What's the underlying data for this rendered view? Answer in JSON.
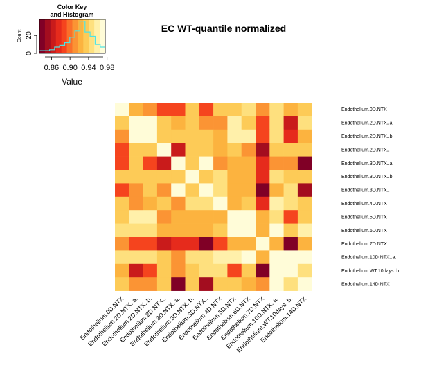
{
  "chart_data": {
    "type": "heatmap",
    "title": "EC WT-quantile normalized",
    "color_key": {
      "title_line1": "Color Key",
      "title_line2": "and Histogram",
      "xlabel": "Value",
      "ylabel": "Count",
      "xticks": [
        "0.86",
        "0.90",
        "0.94",
        "0.98"
      ],
      "xtick_values": [
        0.86,
        0.9,
        0.94,
        0.98
      ],
      "xlim": [
        0.834,
        0.976
      ],
      "yticks": [
        "0",
        "20"
      ],
      "ytick_values": [
        0,
        20
      ],
      "ylim": [
        0,
        38
      ],
      "colors": [
        "#800026",
        "#A30D1F",
        "#C91B1B",
        "#E62B1C",
        "#F5441E",
        "#FA6F2A",
        "#FB9434",
        "#FCB33F",
        "#FDCB57",
        "#FEE07E",
        "#FFF0AA",
        "#FFFCD8"
      ],
      "histogram_values": [
        3,
        3,
        4,
        7,
        9,
        12,
        18,
        25,
        36,
        24,
        19,
        10,
        7
      ]
    },
    "columns": [
      "Endothelium.0D.NTX",
      "Endothelium.2D.NTX..a.",
      "Endothelium.2D.NTX..b.",
      "Endothelium.2D.NTX..",
      "Endothelium.3D.NTX..a.",
      "Endothelium.3D.NTX..b.",
      "Endothelium.3D.NTX..",
      "Endothelium.4D.NTX",
      "Endothelium.5D.NTX",
      "Endothelium.6D.NTX",
      "Endothelium.7D.NTX",
      "Endothelium.10D.NTX..a.",
      "Endothelium.WT.10days..b.",
      "Endothelium.14D.NTX"
    ],
    "rows": [
      "Endothelium.0D.NTX",
      "Endothelium.2D.NTX..a.",
      "Endothelium.2D.NTX..b.",
      "Endothelium.2D.NTX..",
      "Endothelium.3D.NTX..a.",
      "Endothelium.3D.NTX..b.",
      "Endothelium.3D.NTX..",
      "Endothelium.4D.NTX",
      "Endothelium.5D.NTX",
      "Endothelium.6D.NTX",
      "Endothelium.7D.NTX",
      "Endothelium.10D.NTX..a.",
      "Endothelium.WT.10days..b.",
      "Endothelium.14D.NTX"
    ],
    "values": [
      [
        0.98,
        0.92,
        0.91,
        0.89,
        0.89,
        0.93,
        0.89,
        0.93,
        0.93,
        0.95,
        0.91,
        0.95,
        0.92,
        0.93
      ],
      [
        0.93,
        0.98,
        0.98,
        0.93,
        0.92,
        0.93,
        0.91,
        0.91,
        0.96,
        0.93,
        0.89,
        0.95,
        0.86,
        0.95
      ],
      [
        0.91,
        0.98,
        0.98,
        0.93,
        0.93,
        0.93,
        0.93,
        0.92,
        0.96,
        0.96,
        0.89,
        0.95,
        0.88,
        0.92
      ],
      [
        0.89,
        0.94,
        0.94,
        0.98,
        0.86,
        0.93,
        0.93,
        0.92,
        0.93,
        0.91,
        0.85,
        0.94,
        0.94,
        0.94
      ],
      [
        0.89,
        0.93,
        0.89,
        0.86,
        0.98,
        0.93,
        0.98,
        0.91,
        0.92,
        0.92,
        0.87,
        0.91,
        0.91,
        0.84
      ],
      [
        0.93,
        0.93,
        0.93,
        0.93,
        0.93,
        0.98,
        0.93,
        0.95,
        0.92,
        0.92,
        0.87,
        0.95,
        0.94,
        0.93
      ],
      [
        0.89,
        0.91,
        0.93,
        0.91,
        0.98,
        0.93,
        0.98,
        0.95,
        0.92,
        0.92,
        0.83,
        0.92,
        0.95,
        0.85
      ],
      [
        0.93,
        0.91,
        0.92,
        0.93,
        0.91,
        0.95,
        0.95,
        0.98,
        0.92,
        0.94,
        0.88,
        0.96,
        0.95,
        0.94
      ],
      [
        0.93,
        0.96,
        0.96,
        0.91,
        0.92,
        0.92,
        0.92,
        0.92,
        0.98,
        0.98,
        0.92,
        0.95,
        0.89,
        0.93
      ],
      [
        0.95,
        0.95,
        0.95,
        0.92,
        0.92,
        0.92,
        0.92,
        0.94,
        0.98,
        0.98,
        0.92,
        0.98,
        0.93,
        0.96
      ],
      [
        0.91,
        0.89,
        0.89,
        0.86,
        0.87,
        0.87,
        0.83,
        0.89,
        0.92,
        0.92,
        0.98,
        0.92,
        0.83,
        0.92
      ],
      [
        0.95,
        0.95,
        0.95,
        0.94,
        0.91,
        0.95,
        0.95,
        0.96,
        0.96,
        0.98,
        0.92,
        0.98,
        0.97,
        0.98
      ],
      [
        0.92,
        0.86,
        0.89,
        0.94,
        0.91,
        0.94,
        0.95,
        0.95,
        0.89,
        0.93,
        0.83,
        0.97,
        0.98,
        0.95
      ],
      [
        0.93,
        0.91,
        0.91,
        0.94,
        0.84,
        0.93,
        0.85,
        0.94,
        0.93,
        0.92,
        0.91,
        0.98,
        0.95,
        0.98
      ]
    ]
  }
}
